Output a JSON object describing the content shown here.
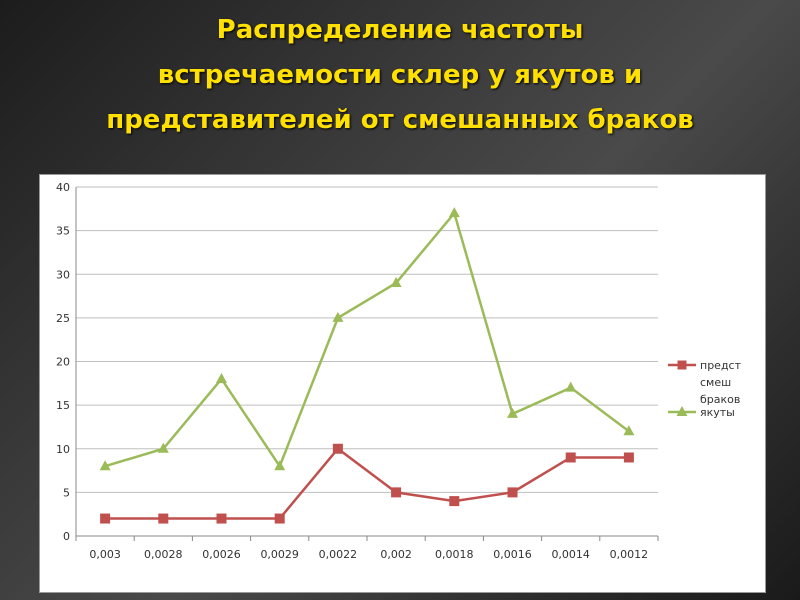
{
  "slide": {
    "title_lines": [
      "Распределение частоты",
      "встречаемости склер у якутов и",
      "представителей от смешанных браков"
    ]
  },
  "chart_data": {
    "type": "line",
    "categories": [
      "0,003",
      "0,0028",
      "0,0026",
      "0,0029",
      "0,0022",
      "0,002",
      "0,0018",
      "0,0016",
      "0,0014",
      "0,0012"
    ],
    "ylim": [
      0,
      40
    ],
    "yticks": [
      "0",
      "5",
      "10",
      "15",
      "20",
      "25",
      "30",
      "35",
      "40"
    ],
    "grid": true,
    "legend_position": "right",
    "series": [
      {
        "name_lines": [
          "предст",
          "смеш",
          "браков"
        ],
        "color": "#c0504d",
        "marker": "square",
        "values": [
          2,
          2,
          2,
          2,
          10,
          5,
          4,
          5,
          9,
          9
        ]
      },
      {
        "name_lines": [
          "якуты"
        ],
        "color": "#9bbb59",
        "marker": "triangle",
        "values": [
          8,
          10,
          18,
          8,
          25,
          29,
          37,
          14,
          17,
          12
        ]
      }
    ]
  }
}
